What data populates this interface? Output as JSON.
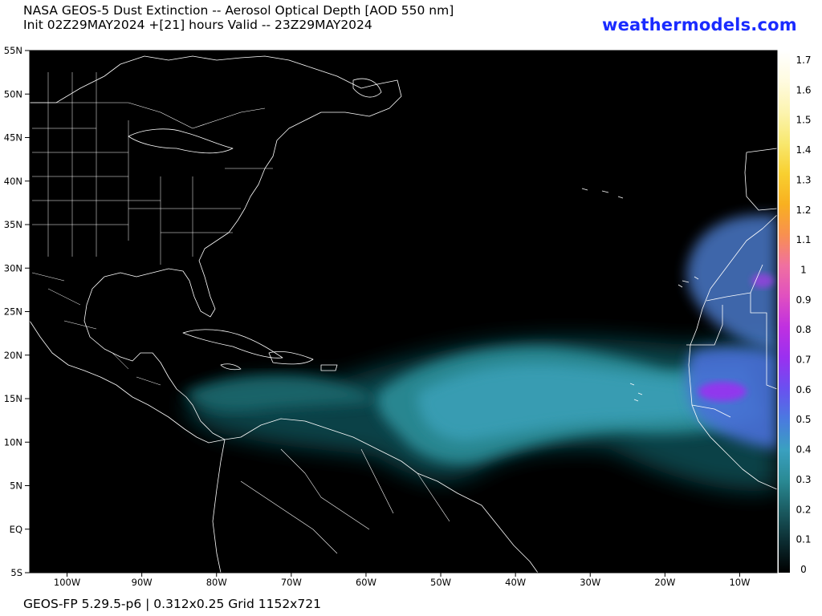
{
  "header": {
    "title_line1": "NASA GEOS-5 Dust Extinction -- Aerosol Optical Depth [AOD 550 nm]",
    "title_line2": "Init 02Z29MAY2024 +[21] hours Valid -- 23Z29MAY2024",
    "brand": "weathermodels.com"
  },
  "footer": {
    "model_info": "GEOS-FP 5.29.5-p6 | 0.312x0.25 Grid 1152x721"
  },
  "map": {
    "lon_range": [
      -105,
      -5
    ],
    "lat_range": [
      -5,
      55
    ],
    "lat_labels": [
      "55N",
      "50N",
      "45N",
      "40N",
      "35N",
      "30N",
      "25N",
      "20N",
      "15N",
      "10N",
      "5N",
      "EQ",
      "5S"
    ],
    "lon_labels": [
      "100W",
      "90W",
      "80W",
      "70W",
      "60W",
      "50W",
      "40W",
      "30W",
      "20W",
      "10W"
    ],
    "background_color": "#000000",
    "border_color": "#ffffff"
  },
  "colorbar": {
    "labels": [
      "0",
      "0.1",
      "0.2",
      "0.3",
      "0.4",
      "0.5",
      "0.6",
      "0.7",
      "0.8",
      "0.9",
      "1",
      "1.1",
      "1.2",
      "1.3",
      "1.4",
      "1.5",
      "1.6",
      "1.7"
    ],
    "range": [
      0,
      1.7
    ],
    "colors": [
      "#000000",
      "#0b2b30",
      "#1a5a60",
      "#2a8a94",
      "#3aa0c0",
      "#4a7ae0",
      "#6a50f0",
      "#9a30f0",
      "#c030e0",
      "#e050c0",
      "#f070a0",
      "#f89050",
      "#f8b020",
      "#f8d030",
      "#f8e870",
      "#fcf4b0",
      "#fffbe0",
      "#ffffff"
    ]
  }
}
